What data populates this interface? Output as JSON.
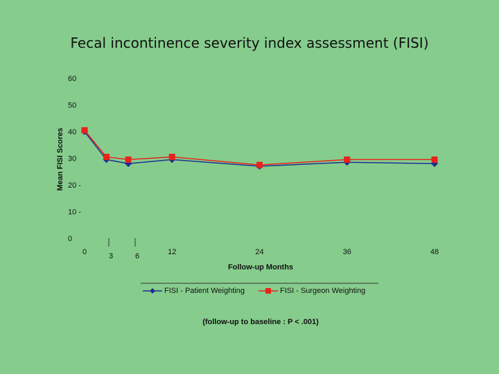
{
  "slide": {
    "title": "Fecal incontinence severity index assessment (FISI)"
  },
  "chart_data": {
    "type": "line",
    "ylabel": "Mean FISI Scores",
    "xlabel": "Follow-up Months",
    "ylim": [
      0,
      60
    ],
    "y_ticks": [
      "0",
      "10 -",
      "20 -",
      "30",
      "40",
      "50",
      "60"
    ],
    "x_tick_labels": [
      "0",
      "12",
      "24",
      "36",
      "48"
    ],
    "x_extra_labels": [
      "3",
      "6"
    ],
    "x": [
      0,
      3,
      6,
      12,
      24,
      36,
      48
    ],
    "series": [
      {
        "name": "FISI - Patient Weighting",
        "color": "#1f2f8f",
        "marker": "diamond",
        "values": [
          40,
          29.5,
          28,
          29.5,
          27,
          28.5,
          28
        ]
      },
      {
        "name": "FISI - Surgeon Weighting",
        "color": "#e8231c",
        "marker": "square",
        "values": [
          40.5,
          30.5,
          29.5,
          30.5,
          27.5,
          29.5,
          29.5
        ]
      }
    ],
    "grid": false,
    "legend_position": "bottom",
    "note": "(follow-up to baseline : P < .001)"
  }
}
